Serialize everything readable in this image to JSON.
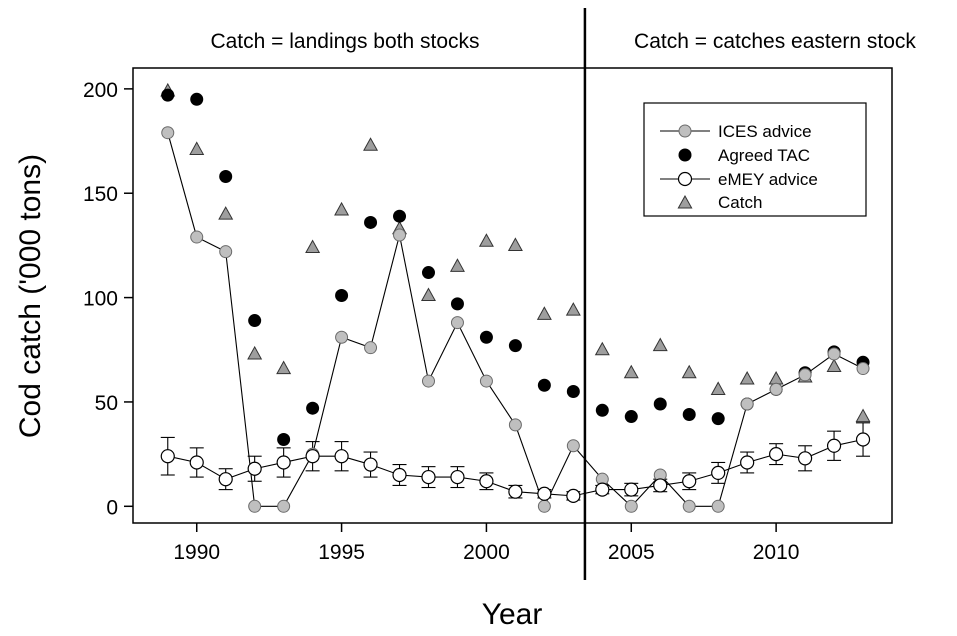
{
  "chart_data": {
    "type": "scatter",
    "xlabel": "Year",
    "ylabel": "Cod catch ('000 tons)",
    "xlim": [
      1987.8,
      2014.0
    ],
    "ylim": [
      -8,
      210
    ],
    "x_ticks": [
      1990,
      1995,
      2000,
      2005,
      2010
    ],
    "y_ticks": [
      0,
      50,
      100,
      150,
      200
    ],
    "grid": false,
    "legend_position": "top-right",
    "regime_divider_year": 2003.4,
    "regime_labels": [
      "Catch = landings both stocks",
      "Catch = catches eastern stock"
    ],
    "series": [
      {
        "name": "ICES advice",
        "marker": "circle",
        "color": "#bfbfbf",
        "connected": true,
        "x": [
          1989,
          1990,
          1991,
          1992,
          1993,
          1994,
          1995,
          1996,
          1997,
          1998,
          1999,
          2000,
          2001,
          2002,
          2003,
          2004,
          2005,
          2006,
          2007,
          2008,
          2009,
          2010,
          2011,
          2012,
          2013
        ],
        "values": [
          179,
          129,
          122,
          0,
          0,
          25,
          81,
          76,
          130,
          60,
          88,
          60,
          39,
          0,
          29,
          13,
          0,
          15,
          0,
          0,
          49,
          56,
          63,
          73,
          66
        ]
      },
      {
        "name": "Agreed TAC",
        "marker": "circle",
        "color": "#000000",
        "connected": false,
        "x": [
          1989,
          1990,
          1991,
          1992,
          1993,
          1994,
          1995,
          1996,
          1997,
          1998,
          1999,
          2000,
          2001,
          2002,
          2003,
          2004,
          2005,
          2006,
          2007,
          2008,
          2009,
          2010,
          2011,
          2012,
          2013
        ],
        "values": [
          197,
          195,
          158,
          89,
          32,
          47,
          101,
          136,
          139,
          112,
          97,
          81,
          77,
          58,
          55,
          46,
          43,
          49,
          44,
          42,
          49,
          56,
          64,
          74,
          69
        ]
      },
      {
        "name": "eMEY advice",
        "marker": "circle",
        "color": "#ffffff",
        "connected": true,
        "x": [
          1989,
          1990,
          1991,
          1992,
          1993,
          1994,
          1995,
          1996,
          1997,
          1998,
          1999,
          2000,
          2001,
          2002,
          2003,
          2004,
          2005,
          2006,
          2007,
          2008,
          2009,
          2010,
          2011,
          2012,
          2013
        ],
        "values": [
          24,
          21,
          13,
          18,
          21,
          24,
          24,
          20,
          15,
          14,
          14,
          12,
          7,
          6,
          5,
          8,
          8,
          10,
          12,
          16,
          21,
          25,
          23,
          29,
          32
        ],
        "error": [
          9,
          7,
          5,
          6,
          7,
          7,
          7,
          6,
          5,
          5,
          5,
          4,
          3,
          2,
          2,
          2,
          3,
          3,
          4,
          5,
          5,
          5,
          6,
          7,
          8
        ]
      },
      {
        "name": "Catch",
        "marker": "triangle",
        "color": "#9e9e9e",
        "connected": false,
        "x": [
          1989,
          1990,
          1991,
          1992,
          1993,
          1994,
          1995,
          1996,
          1997,
          1998,
          1999,
          2000,
          2001,
          2002,
          2003,
          2004,
          2005,
          2006,
          2007,
          2008,
          2009,
          2010,
          2011,
          2012,
          2013
        ],
        "values": [
          199,
          171,
          140,
          73,
          66,
          124,
          142,
          173,
          133,
          101,
          115,
          127,
          125,
          92,
          94,
          75,
          64,
          77,
          64,
          56,
          61,
          61,
          62,
          67,
          43
        ]
      }
    ]
  }
}
